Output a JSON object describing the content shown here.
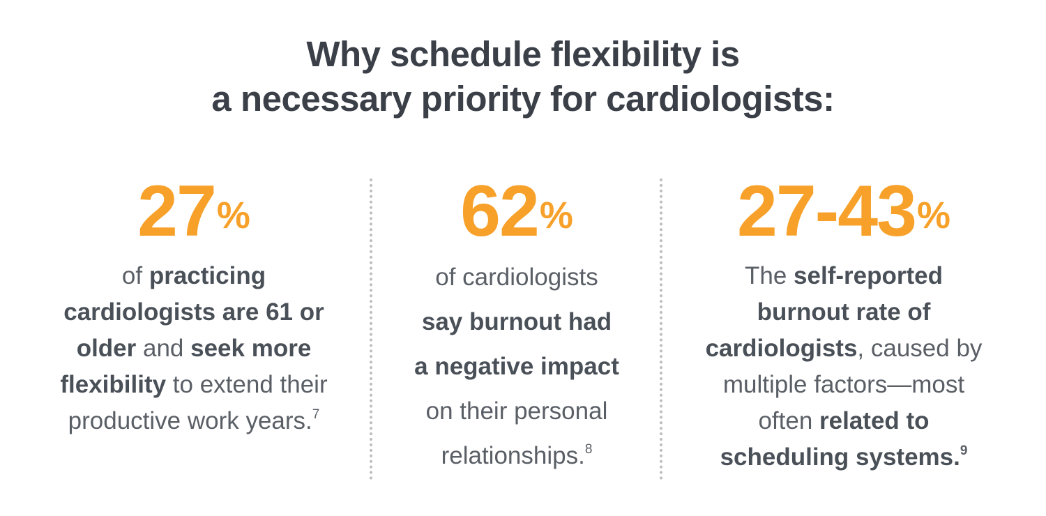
{
  "title": {
    "line1": "Why schedule flexibility is",
    "line2": "a necessary priority for cardiologists:"
  },
  "colors": {
    "accent": "#f7a12a",
    "title": "#3b4048",
    "body": "#5a5f66",
    "divider": "#bdbdbd"
  },
  "stats": [
    {
      "value": "27",
      "unit": "%",
      "lines": [
        [
          {
            "t": "of ",
            "b": false
          },
          {
            "t": "practicing",
            "b": true
          }
        ],
        [
          {
            "t": "cardiologists are 61 or",
            "b": true
          }
        ],
        [
          {
            "t": "older",
            "b": true
          },
          {
            "t": " and ",
            "b": false
          },
          {
            "t": "seek more",
            "b": true
          }
        ],
        [
          {
            "t": "flexibility",
            "b": true
          },
          {
            "t": " to extend their",
            "b": false
          }
        ],
        [
          {
            "t": "productive work years.",
            "b": false
          },
          {
            "t": "7",
            "b": false,
            "sup": true
          }
        ]
      ]
    },
    {
      "value": "62",
      "unit": "%",
      "lines": [
        [
          {
            "t": "of cardiologists",
            "b": false
          }
        ],
        [
          {
            "t": "say burnout had",
            "b": true
          }
        ],
        [
          {
            "t": "a negative impact",
            "b": true
          }
        ],
        [
          {
            "t": "on their personal",
            "b": false
          }
        ],
        [
          {
            "t": "relationships.",
            "b": false
          },
          {
            "t": "8",
            "b": false,
            "sup": true
          }
        ]
      ]
    },
    {
      "value": "27-43",
      "unit": "%",
      "lines": [
        [
          {
            "t": "The ",
            "b": false
          },
          {
            "t": "self-reported",
            "b": true
          }
        ],
        [
          {
            "t": "burnout rate of",
            "b": true
          }
        ],
        [
          {
            "t": "cardiologists",
            "b": true
          },
          {
            "t": ", caused by",
            "b": false
          }
        ],
        [
          {
            "t": "multiple factors—most",
            "b": false
          }
        ],
        [
          {
            "t": "often ",
            "b": false
          },
          {
            "t": "related to",
            "b": true
          }
        ],
        [
          {
            "t": "scheduling systems.",
            "b": true
          },
          {
            "t": "9",
            "b": true,
            "sup": true
          }
        ]
      ]
    }
  ]
}
